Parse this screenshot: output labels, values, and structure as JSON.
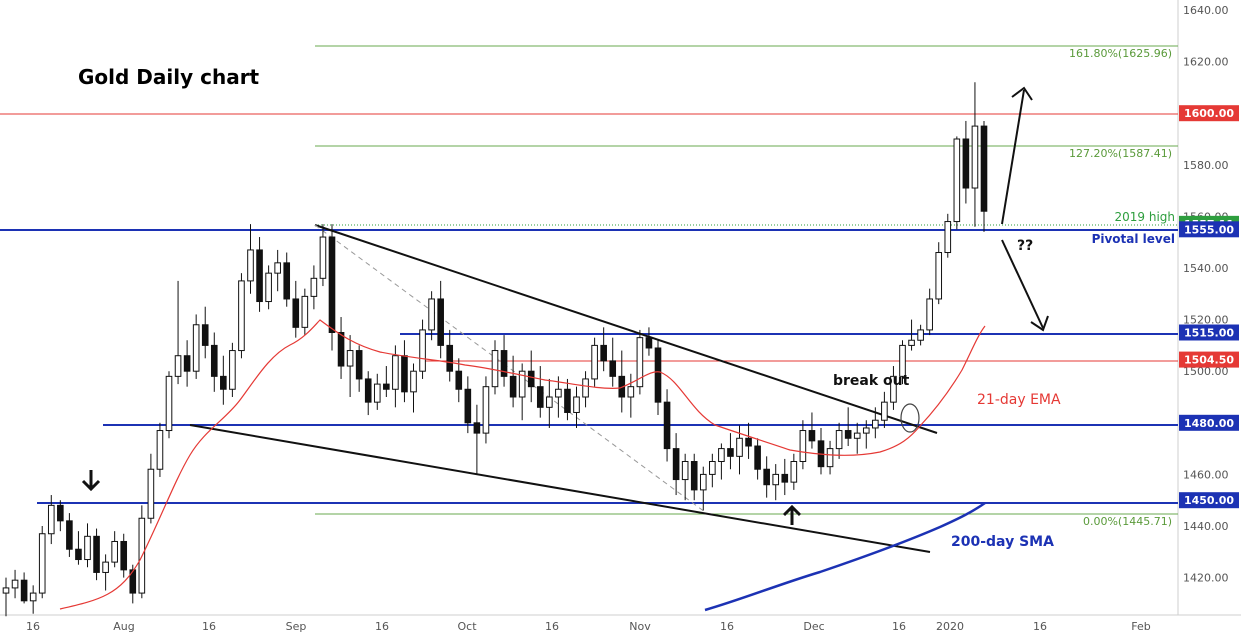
{
  "chart_data": {
    "type": "candlestick",
    "title": "Gold Daily chart",
    "x_axis": {
      "tick_labels": [
        "16",
        "Aug",
        "16",
        "Sep",
        "16",
        "Oct",
        "16",
        "Nov",
        "16",
        "Dec",
        "16",
        "2020",
        "16",
        "Feb"
      ]
    },
    "y_axis": {
      "range": [
        1405,
        1645
      ],
      "tick_labels": [
        "1640.00",
        "1620.00",
        "1600.00",
        "1580.00",
        "1560.00",
        "1540.00",
        "1520.00",
        "1500.00",
        "1480.00",
        "1460.00",
        "1440.00",
        "1420.00"
      ]
    },
    "price_badges": [
      {
        "value": "1600.00",
        "color": "#e53935"
      },
      {
        "value": "1557.11",
        "color": "#2e9e3e"
      },
      {
        "value": "1555.00",
        "color": "#1c32b4"
      },
      {
        "value": "1515.00",
        "color": "#1c32b4"
      },
      {
        "value": "1504.50",
        "color": "#e53935"
      },
      {
        "value": "1480.00",
        "color": "#1c32b4"
      },
      {
        "value": "1450.00",
        "color": "#1c32b4"
      }
    ],
    "fibonacci_labels": [
      "161.80%(1625.96)",
      "127.20%(1587.41)",
      "0.00%(1445.71)"
    ],
    "annotations": {
      "high_2019": "2019 high",
      "pivotal": "Pivotal level",
      "question": "??",
      "breakout": "break out",
      "ema": "21-day EMA",
      "sma": "200-day SMA"
    },
    "series": [
      {
        "name": "21-day EMA",
        "color": "#e53935"
      },
      {
        "name": "200-day SMA",
        "color": "#1c32b4"
      }
    ],
    "candles": [
      [
        1414,
        1420,
        1405,
        1416
      ],
      [
        1416,
        1423,
        1412,
        1419
      ],
      [
        1419,
        1422,
        1410,
        1411
      ],
      [
        1411,
        1417,
        1406,
        1414
      ],
      [
        1414,
        1440,
        1412,
        1437
      ],
      [
        1437,
        1452,
        1433,
        1448
      ],
      [
        1448,
        1450,
        1438,
        1442
      ],
      [
        1442,
        1445,
        1428,
        1431
      ],
      [
        1431,
        1438,
        1425,
        1427
      ],
      [
        1427,
        1441,
        1424,
        1436
      ],
      [
        1436,
        1439,
        1419,
        1422
      ],
      [
        1422,
        1429,
        1415,
        1426
      ],
      [
        1426,
        1438,
        1424,
        1434
      ],
      [
        1434,
        1437,
        1420,
        1423
      ],
      [
        1423,
        1425,
        1410,
        1414
      ],
      [
        1414,
        1448,
        1412,
        1443
      ],
      [
        1443,
        1468,
        1441,
        1462
      ],
      [
        1462,
        1480,
        1459,
        1477
      ],
      [
        1477,
        1500,
        1474,
        1498
      ],
      [
        1498,
        1535,
        1495,
        1506
      ],
      [
        1506,
        1512,
        1494,
        1500
      ],
      [
        1500,
        1522,
        1497,
        1518
      ],
      [
        1518,
        1525,
        1505,
        1510
      ],
      [
        1510,
        1515,
        1492,
        1498
      ],
      [
        1498,
        1506,
        1487,
        1493
      ],
      [
        1493,
        1511,
        1490,
        1508
      ],
      [
        1508,
        1538,
        1505,
        1535
      ],
      [
        1535,
        1557,
        1530,
        1547
      ],
      [
        1547,
        1552,
        1523,
        1527
      ],
      [
        1527,
        1541,
        1524,
        1538
      ],
      [
        1538,
        1547,
        1531,
        1542
      ],
      [
        1542,
        1546,
        1525,
        1528
      ],
      [
        1528,
        1535,
        1513,
        1517
      ],
      [
        1517,
        1532,
        1514,
        1529
      ],
      [
        1529,
        1541,
        1524,
        1536
      ],
      [
        1536,
        1557,
        1533,
        1552
      ],
      [
        1552,
        1557,
        1508,
        1515
      ],
      [
        1515,
        1521,
        1497,
        1502
      ],
      [
        1502,
        1514,
        1490,
        1508
      ],
      [
        1508,
        1510,
        1492,
        1497
      ],
      [
        1497,
        1500,
        1483,
        1488
      ],
      [
        1488,
        1499,
        1485,
        1495
      ],
      [
        1495,
        1502,
        1490,
        1493
      ],
      [
        1493,
        1510,
        1486,
        1506
      ],
      [
        1506,
        1512,
        1488,
        1492
      ],
      [
        1492,
        1503,
        1484,
        1500
      ],
      [
        1500,
        1520,
        1497,
        1516
      ],
      [
        1516,
        1531,
        1512,
        1528
      ],
      [
        1528,
        1535,
        1505,
        1510
      ],
      [
        1510,
        1516,
        1496,
        1500
      ],
      [
        1500,
        1505,
        1488,
        1493
      ],
      [
        1493,
        1498,
        1476,
        1480
      ],
      [
        1480,
        1487,
        1460,
        1476
      ],
      [
        1476,
        1498,
        1472,
        1494
      ],
      [
        1494,
        1512,
        1491,
        1508
      ],
      [
        1508,
        1514,
        1494,
        1498
      ],
      [
        1498,
        1506,
        1486,
        1490
      ],
      [
        1490,
        1503,
        1481,
        1500
      ],
      [
        1500,
        1508,
        1488,
        1494
      ],
      [
        1494,
        1502,
        1482,
        1486
      ],
      [
        1486,
        1497,
        1478,
        1490
      ],
      [
        1490,
        1498,
        1482,
        1493
      ],
      [
        1493,
        1497,
        1481,
        1484
      ],
      [
        1484,
        1494,
        1478,
        1490
      ],
      [
        1490,
        1500,
        1486,
        1497
      ],
      [
        1497,
        1513,
        1494,
        1510
      ],
      [
        1510,
        1517,
        1500,
        1504
      ],
      [
        1504,
        1513,
        1494,
        1498
      ],
      [
        1498,
        1508,
        1484,
        1490
      ],
      [
        1490,
        1499,
        1482,
        1494
      ],
      [
        1494,
        1516,
        1491,
        1513
      ],
      [
        1513,
        1517,
        1506,
        1509
      ],
      [
        1509,
        1512,
        1483,
        1488
      ],
      [
        1488,
        1493,
        1465,
        1470
      ],
      [
        1470,
        1476,
        1452,
        1458
      ],
      [
        1458,
        1468,
        1450,
        1465
      ],
      [
        1465,
        1468,
        1450,
        1454
      ],
      [
        1454,
        1463,
        1446,
        1460
      ],
      [
        1460,
        1468,
        1455,
        1465
      ],
      [
        1465,
        1472,
        1458,
        1470
      ],
      [
        1470,
        1476,
        1462,
        1467
      ],
      [
        1467,
        1479,
        1460,
        1474
      ],
      [
        1474,
        1480,
        1466,
        1471
      ],
      [
        1471,
        1474,
        1458,
        1462
      ],
      [
        1462,
        1467,
        1451,
        1456
      ],
      [
        1456,
        1464,
        1450,
        1460
      ],
      [
        1460,
        1466,
        1452,
        1457
      ],
      [
        1457,
        1468,
        1454,
        1465
      ],
      [
        1465,
        1481,
        1462,
        1477
      ],
      [
        1477,
        1484,
        1470,
        1473
      ],
      [
        1473,
        1478,
        1460,
        1463
      ],
      [
        1463,
        1473,
        1460,
        1470
      ],
      [
        1470,
        1480,
        1466,
        1477
      ],
      [
        1477,
        1486,
        1471,
        1474
      ],
      [
        1474,
        1480,
        1468,
        1476
      ],
      [
        1476,
        1481,
        1470,
        1478
      ],
      [
        1478,
        1486,
        1474,
        1481
      ],
      [
        1481,
        1492,
        1478,
        1488
      ],
      [
        1488,
        1502,
        1485,
        1498
      ],
      [
        1498,
        1512,
        1495,
        1510
      ],
      [
        1510,
        1520,
        1508,
        1512
      ],
      [
        1512,
        1518,
        1510,
        1516
      ],
      [
        1516,
        1532,
        1514,
        1528
      ],
      [
        1528,
        1550,
        1526,
        1546
      ],
      [
        1546,
        1561,
        1544,
        1558
      ],
      [
        1558,
        1591,
        1555,
        1590
      ],
      [
        1590,
        1597,
        1565,
        1571
      ],
      [
        1571,
        1612,
        1556,
        1595
      ],
      [
        1595,
        1597,
        1554,
        1562
      ]
    ]
  }
}
